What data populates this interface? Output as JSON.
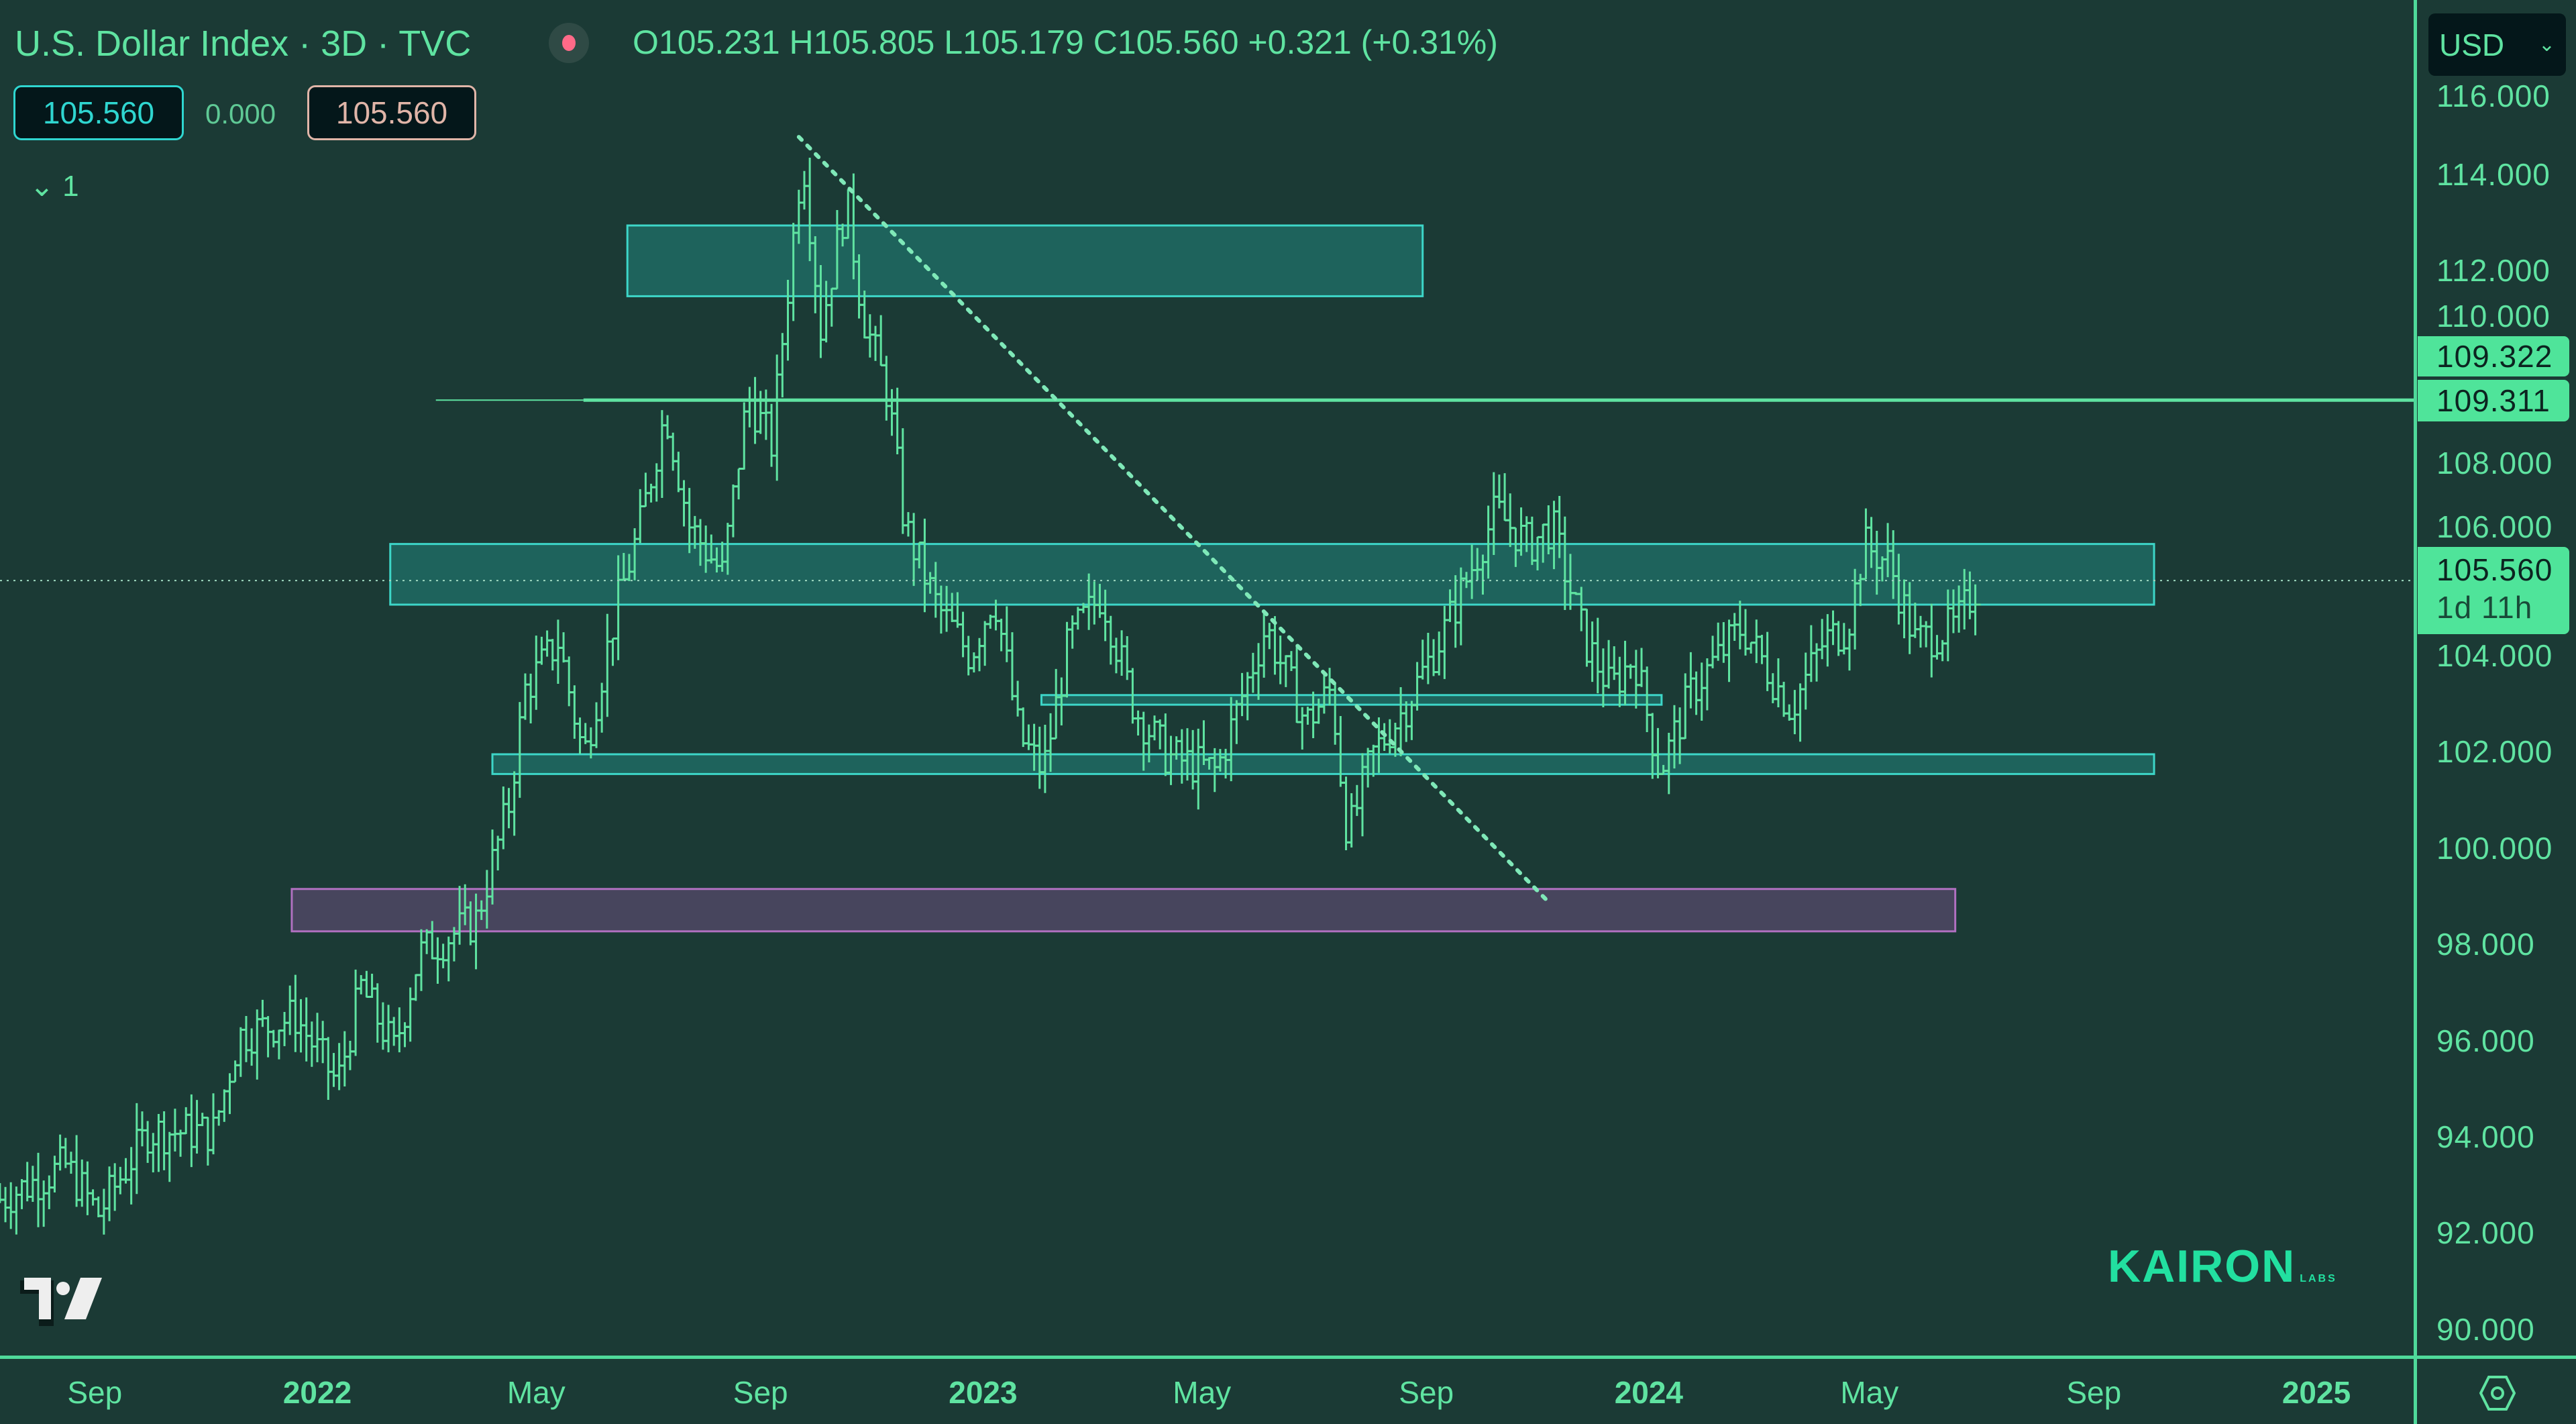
{
  "header": {
    "title": "U.S. Dollar Index · 3D · TVC",
    "ohlc": "O105.231  H105.805  L105.179  C105.560  +0.321 (+0.31%)",
    "bid": "105.560",
    "spread": "0.000",
    "ask": "105.560",
    "indicators_toggle": "⌄ 1"
  },
  "currency_button": {
    "label": "USD",
    "icon": "chevron-down-icon"
  },
  "colors": {
    "background": "#1b3a35",
    "bars": "#5fe3a1",
    "zone_fill": "#1f6b63",
    "zone_border": "#3dd6c8",
    "purple_zone_fill": "#4a4660",
    "purple_zone_border": "#b070c0",
    "price_tag": "#4fe49a"
  },
  "price_tags": [
    {
      "value": "109.322"
    },
    {
      "value": "109.311"
    },
    {
      "value": "105.560",
      "countdown": "1d 11h"
    }
  ],
  "branding": {
    "tradingview_logo": "TV",
    "watermark": "KAIRON",
    "watermark_sub": "LABS"
  },
  "chart_data": {
    "type": "ohlc",
    "symbol": "U.S. Dollar Index",
    "interval": "3D",
    "ylim": [
      89.5,
      116.5
    ],
    "y_ticks": [
      "116.000",
      "114.000",
      "112.000",
      "110.000",
      "108.000",
      "106.000",
      "104.000",
      "102.000",
      "100.000",
      "98.000",
      "96.000",
      "94.000",
      "92.000",
      "90.000"
    ],
    "x_ticks": [
      {
        "label": "Sep",
        "date": "2021-09-01",
        "year": false
      },
      {
        "label": "2022",
        "date": "2022-01-01",
        "year": true
      },
      {
        "label": "May",
        "date": "2022-05-01",
        "year": false
      },
      {
        "label": "Sep",
        "date": "2022-09-01",
        "year": false
      },
      {
        "label": "2023",
        "date": "2023-01-01",
        "year": true
      },
      {
        "label": "May",
        "date": "2023-05-01",
        "year": false
      },
      {
        "label": "Sep",
        "date": "2023-09-01",
        "year": false
      },
      {
        "label": "2024",
        "date": "2024-01-01",
        "year": true
      },
      {
        "label": "May",
        "date": "2024-05-01",
        "year": false
      },
      {
        "label": "Sep",
        "date": "2024-09-01",
        "year": false
      },
      {
        "label": "2025",
        "date": "2025-01-01",
        "year": true
      }
    ],
    "price_path": [
      [
        "2021-07-11",
        92.7
      ],
      [
        "2021-08-16",
        93.4
      ],
      [
        "2021-09-03",
        92.4
      ],
      [
        "2021-09-30",
        94.1
      ],
      [
        "2021-11-05",
        94.1
      ],
      [
        "2021-11-19",
        96.1
      ],
      [
        "2021-12-20",
        96.5
      ],
      [
        "2022-01-12",
        95.1
      ],
      [
        "2022-01-25",
        97.1
      ],
      [
        "2022-02-12",
        95.8
      ],
      [
        "2022-02-26",
        97.8
      ],
      [
        "2022-03-29",
        98.5
      ],
      [
        "2022-04-16",
        100.9
      ],
      [
        "2022-04-25",
        103.3
      ],
      [
        "2022-05-13",
        104.3
      ],
      [
        "2022-05-27",
        101.9
      ],
      [
        "2022-06-14",
        105.0
      ],
      [
        "2022-06-27",
        106.7
      ],
      [
        "2022-07-11",
        109.1
      ],
      [
        "2022-07-24",
        106.7
      ],
      [
        "2022-08-11",
        105.7
      ],
      [
        "2022-08-25",
        109.4
      ],
      [
        "2022-09-07",
        108.4
      ],
      [
        "2022-09-24",
        114.5
      ],
      [
        "2022-10-04",
        110.8
      ],
      [
        "2022-10-18",
        113.5
      ],
      [
        "2022-10-27",
        111.1
      ],
      [
        "2022-11-10",
        109.4
      ],
      [
        "2022-11-19",
        106.7
      ],
      [
        "2022-12-07",
        105.0
      ],
      [
        "2022-12-25",
        104.0
      ],
      [
        "2023-01-07",
        105.3
      ],
      [
        "2023-01-21",
        102.3
      ],
      [
        "2023-02-03",
        101.6
      ],
      [
        "2023-02-17",
        104.3
      ],
      [
        "2023-03-07",
        105.3
      ],
      [
        "2023-03-25",
        102.9
      ],
      [
        "2023-04-12",
        101.9
      ],
      [
        "2023-05-09",
        101.6
      ],
      [
        "2023-06-05",
        104.6
      ],
      [
        "2023-06-27",
        102.6
      ],
      [
        "2023-07-11",
        103.3
      ],
      [
        "2023-07-20",
        100.2
      ],
      [
        "2023-08-02",
        101.9
      ],
      [
        "2023-08-20",
        102.9
      ],
      [
        "2023-09-12",
        104.6
      ],
      [
        "2023-10-09",
        107.0
      ],
      [
        "2023-10-27",
        106.3
      ],
      [
        "2023-11-09",
        106.7
      ],
      [
        "2023-11-27",
        104.3
      ],
      [
        "2023-12-11",
        103.3
      ],
      [
        "2023-12-24",
        104.0
      ],
      [
        "2024-01-07",
        101.6
      ],
      [
        "2024-01-25",
        103.3
      ],
      [
        "2024-02-21",
        104.6
      ],
      [
        "2024-03-19",
        102.9
      ],
      [
        "2024-04-06",
        104.3
      ],
      [
        "2024-04-19",
        104.6
      ],
      [
        "2024-04-28",
        106.3
      ],
      [
        "2024-05-12",
        105.9
      ],
      [
        "2024-05-26",
        104.3
      ],
      [
        "2024-06-17",
        104.6
      ],
      [
        "2024-06-30",
        105.56
      ]
    ],
    "last_price": 105.56,
    "drawings": [
      {
        "kind": "zone",
        "from": "2022-06-20",
        "to": "2023-08-30",
        "top": 112.94,
        "bottom": 111.47,
        "color": "teal"
      },
      {
        "kind": "zone",
        "from": "2022-02-10",
        "to": "2024-10-04",
        "top": 106.32,
        "bottom": 105.06,
        "color": "teal"
      },
      {
        "kind": "zone",
        "from": "2023-02-02",
        "to": "2024-01-08",
        "top": 103.18,
        "bottom": 102.98,
        "color": "teal"
      },
      {
        "kind": "zone",
        "from": "2022-04-07",
        "to": "2024-10-04",
        "top": 101.95,
        "bottom": 101.54,
        "color": "teal"
      },
      {
        "kind": "zone",
        "from": "2021-12-18",
        "to": "2024-06-17",
        "top": 99.15,
        "bottom": 98.27,
        "color": "purple"
      },
      {
        "kind": "horizontal_ray",
        "from": "2022-03-07",
        "price": 109.311
      },
      {
        "kind": "dotted_trendline",
        "from": [
          "2022-09-22",
          114.78
        ],
        "to": [
          "2023-11-07",
          98.88
        ]
      }
    ]
  }
}
